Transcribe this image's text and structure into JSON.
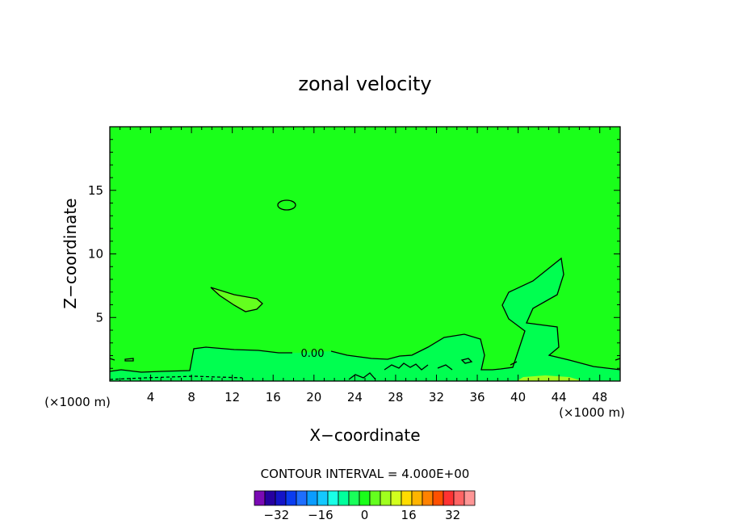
{
  "chart_data": {
    "type": "contour",
    "title": "zonal velocity",
    "xlabel": "X−coordinate",
    "ylabel": "Z−coordinate",
    "x_unit_left": "(×1000 m)",
    "x_unit_right": "(×1000 m)",
    "xlim": [
      0,
      50
    ],
    "ylim": [
      0,
      20
    ],
    "x_ticks": [
      4,
      8,
      12,
      16,
      20,
      24,
      28,
      32,
      36,
      40,
      44,
      48
    ],
    "y_ticks": [
      5,
      10,
      15
    ],
    "contour_label": "0.00",
    "contour_interval_text": "CONTOUR INTERVAL = 4.000E+00",
    "background_level_color": "#1aff1a",
    "colorbar": {
      "colors": [
        "#7a0ab4",
        "#2600a0",
        "#1414c8",
        "#0a3cf0",
        "#1e6eff",
        "#0a9cff",
        "#14c8ff",
        "#19ffe6",
        "#00ff9c",
        "#19ff5a",
        "#1aff1a",
        "#64ff1e",
        "#a0ff1e",
        "#d2ff1e",
        "#ffdc00",
        "#ffb400",
        "#ff8200",
        "#ff5000",
        "#ff3232",
        "#ff6464",
        "#ff9696"
      ],
      "tick_labels": [
        "−32",
        "−16",
        "0",
        "16",
        "32"
      ],
      "tick_values": [
        -32,
        -16,
        0,
        16,
        32
      ],
      "min": -40,
      "max": 40,
      "step": 4
    },
    "regions": [
      {
        "level": "4 to 8",
        "color": "#64ff1e",
        "description": "small lens near x≈10–15 km, z≈6–7 km"
      },
      {
        "level": "-4 to 0",
        "color": "#00ff50",
        "description": "low-level layer and plume near x≈40–44 km"
      },
      {
        "level": "8 to 12",
        "color": "#a0ff1e",
        "description": "thin band at surface near x≈42 km"
      }
    ]
  }
}
